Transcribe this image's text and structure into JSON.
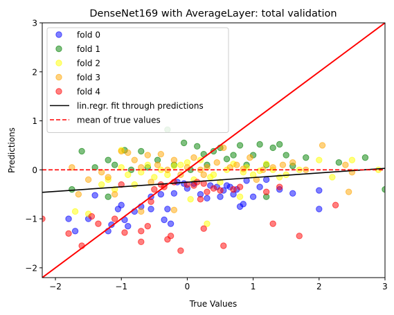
{
  "chart_data": {
    "type": "scatter",
    "title": "DenseNet169 with AverageLayer: total validation",
    "xlabel": "True Values",
    "ylabel": "Predictions",
    "xlim": [
      -2.2,
      3.0
    ],
    "ylim": [
      -2.2,
      3.0
    ],
    "xticks": [
      -2,
      -1,
      0,
      1,
      2,
      3
    ],
    "yticks": [
      -2,
      -1,
      0,
      1,
      2,
      3
    ],
    "grid": false,
    "legend_position": "top-left",
    "series": [
      {
        "name": "fold 0",
        "color": "#0000ff",
        "points": [
          [
            -1.8,
            -1.0
          ],
          [
            -1.7,
            -1.25
          ],
          [
            -1.5,
            -1.0
          ],
          [
            -1.2,
            -1.25
          ],
          [
            -1.15,
            -1.12
          ],
          [
            -1.05,
            -0.8
          ],
          [
            -1.0,
            -0.72
          ],
          [
            -0.95,
            -1.02
          ],
          [
            -0.9,
            -1.15
          ],
          [
            -0.8,
            -0.85
          ],
          [
            -0.7,
            -0.75
          ],
          [
            -0.55,
            -0.8
          ],
          [
            -0.4,
            -0.5
          ],
          [
            -0.35,
            -1.02
          ],
          [
            -0.3,
            -0.8
          ],
          [
            -0.25,
            -1.1
          ],
          [
            -0.2,
            -0.48
          ],
          [
            -0.15,
            -0.25
          ],
          [
            -0.05,
            -0.28
          ],
          [
            0.0,
            -0.38
          ],
          [
            0.1,
            -0.28
          ],
          [
            0.2,
            -0.5
          ],
          [
            0.35,
            -0.32
          ],
          [
            0.45,
            -0.35
          ],
          [
            0.5,
            -0.55
          ],
          [
            0.55,
            -0.42
          ],
          [
            0.6,
            -0.32
          ],
          [
            0.65,
            -0.35
          ],
          [
            0.7,
            -0.5
          ],
          [
            0.75,
            -0.4
          ],
          [
            0.8,
            -0.75
          ],
          [
            0.85,
            -0.7
          ],
          [
            0.9,
            -0.22
          ],
          [
            1.0,
            -0.55
          ],
          [
            1.1,
            -0.35
          ],
          [
            1.2,
            -0.2
          ],
          [
            1.4,
            -0.4
          ],
          [
            1.6,
            -0.48
          ],
          [
            2.0,
            -0.42
          ],
          [
            2.0,
            -0.8
          ],
          [
            -1.4,
            -0.52
          ],
          [
            -0.55,
            -0.55
          ],
          [
            0.3,
            -0.58
          ]
        ]
      },
      {
        "name": "fold 1",
        "color": "#008000",
        "points": [
          [
            -1.75,
            -0.4
          ],
          [
            -1.6,
            0.38
          ],
          [
            -1.4,
            0.05
          ],
          [
            -1.2,
            0.2
          ],
          [
            -1.1,
            0.1
          ],
          [
            -0.95,
            0.4
          ],
          [
            -0.85,
            0.0
          ],
          [
            -0.7,
            0.38
          ],
          [
            -0.6,
            0.05
          ],
          [
            -0.45,
            0.2
          ],
          [
            -0.3,
            0.82
          ],
          [
            -0.2,
            0.1
          ],
          [
            -0.05,
            0.55
          ],
          [
            0.05,
            0.0
          ],
          [
            0.15,
            0.48
          ],
          [
            0.25,
            0.32
          ],
          [
            0.3,
            0.1
          ],
          [
            0.4,
            0.38
          ],
          [
            0.5,
            0.45
          ],
          [
            0.6,
            0.22
          ],
          [
            0.7,
            0.3
          ],
          [
            0.8,
            0.5
          ],
          [
            0.9,
            0.1
          ],
          [
            1.0,
            0.3
          ],
          [
            1.1,
            0.52
          ],
          [
            1.2,
            0.1
          ],
          [
            1.3,
            0.45
          ],
          [
            1.4,
            0.52
          ],
          [
            1.5,
            0.3
          ],
          [
            1.6,
            0.08
          ],
          [
            1.8,
            0.25
          ],
          [
            2.3,
            0.15
          ],
          [
            2.7,
            0.25
          ],
          [
            3.0,
            -0.4
          ],
          [
            1.2,
            -0.55
          ],
          [
            -1.2,
            -0.55
          ]
        ]
      },
      {
        "name": "fold 2",
        "color": "#ffff00",
        "points": [
          [
            -1.7,
            -0.85
          ],
          [
            -1.5,
            -0.9
          ],
          [
            -1.3,
            -0.3
          ],
          [
            -1.2,
            -0.2
          ],
          [
            -1.1,
            -0.4
          ],
          [
            -1.0,
            0.05
          ],
          [
            -0.9,
            -0.1
          ],
          [
            -0.8,
            -0.3
          ],
          [
            -0.7,
            -0.05
          ],
          [
            -0.6,
            0.1
          ],
          [
            -0.5,
            -0.15
          ],
          [
            -0.4,
            0.0
          ],
          [
            -0.3,
            -0.1
          ],
          [
            -0.2,
            0.08
          ],
          [
            -0.1,
            0.1
          ],
          [
            0.0,
            0.15
          ],
          [
            0.05,
            -0.6
          ],
          [
            0.1,
            -0.2
          ],
          [
            0.2,
            0.2
          ],
          [
            0.3,
            -1.1
          ],
          [
            0.35,
            -0.15
          ],
          [
            0.4,
            -0.1
          ],
          [
            0.5,
            -0.25
          ],
          [
            0.6,
            0.0
          ],
          [
            0.7,
            0.12
          ],
          [
            0.8,
            -0.55
          ],
          [
            0.85,
            -0.05
          ],
          [
            0.9,
            0.05
          ],
          [
            1.0,
            -0.1
          ],
          [
            1.1,
            -0.02
          ],
          [
            1.2,
            0.12
          ],
          [
            1.3,
            0.0
          ],
          [
            1.4,
            -0.15
          ],
          [
            1.5,
            -0.1
          ],
          [
            1.7,
            0.0
          ],
          [
            2.0,
            0.2
          ],
          [
            2.2,
            -0.15
          ],
          [
            2.5,
            0.2
          ],
          [
            2.9,
            0.0
          ],
          [
            -1.0,
            0.4
          ]
        ]
      },
      {
        "name": "fold 3",
        "color": "#ffa500",
        "points": [
          [
            -1.75,
            0.05
          ],
          [
            -1.65,
            -0.5
          ],
          [
            -1.5,
            -0.2
          ],
          [
            -1.3,
            -0.05
          ],
          [
            -1.2,
            -0.15
          ],
          [
            -1.1,
            -0.5
          ],
          [
            -1.0,
            0.38
          ],
          [
            -0.9,
            0.35
          ],
          [
            -0.8,
            0.2
          ],
          [
            -0.7,
            0.05
          ],
          [
            -0.6,
            0.3
          ],
          [
            -0.55,
            -0.25
          ],
          [
            -0.45,
            0.1
          ],
          [
            -0.4,
            0.32
          ],
          [
            -0.3,
            0.0
          ],
          [
            -0.2,
            0.2
          ],
          [
            -0.1,
            -0.1
          ],
          [
            0.0,
            0.05
          ],
          [
            0.1,
            0.25
          ],
          [
            0.2,
            0.0
          ],
          [
            0.25,
            -0.1
          ],
          [
            0.3,
            0.05
          ],
          [
            0.45,
            0.15
          ],
          [
            0.55,
            0.45
          ],
          [
            0.65,
            0.05
          ],
          [
            0.75,
            0.1
          ],
          [
            0.85,
            0.02
          ],
          [
            0.95,
            0.25
          ],
          [
            1.05,
            -0.2
          ],
          [
            1.15,
            0.0
          ],
          [
            1.3,
            0.05
          ],
          [
            1.45,
            0.1
          ],
          [
            1.6,
            0.15
          ],
          [
            1.8,
            0.0
          ],
          [
            2.05,
            0.5
          ],
          [
            2.4,
            0.1
          ],
          [
            2.5,
            -0.05
          ],
          [
            2.45,
            -0.45
          ],
          [
            -0.7,
            -0.85
          ],
          [
            -0.2,
            -0.82
          ]
        ]
      },
      {
        "name": "fold 4",
        "color": "#ff0000",
        "points": [
          [
            -2.2,
            -1.0
          ],
          [
            -1.8,
            -1.3
          ],
          [
            -1.6,
            -1.55
          ],
          [
            -1.45,
            -0.95
          ],
          [
            -1.35,
            -1.1
          ],
          [
            -1.1,
            -1.0
          ],
          [
            -1.0,
            -0.3
          ],
          [
            -0.95,
            -1.28
          ],
          [
            -0.7,
            -1.25
          ],
          [
            -0.7,
            -1.47
          ],
          [
            -0.6,
            -1.15
          ],
          [
            -0.5,
            -0.4
          ],
          [
            -0.4,
            -0.3
          ],
          [
            -0.35,
            -0.35
          ],
          [
            -0.3,
            -1.42
          ],
          [
            -0.25,
            -1.35
          ],
          [
            -0.2,
            -0.25
          ],
          [
            -0.1,
            -1.65
          ],
          [
            0.0,
            -0.3
          ],
          [
            0.1,
            -0.32
          ],
          [
            0.15,
            -0.25
          ],
          [
            0.2,
            -0.6
          ],
          [
            0.25,
            -0.28
          ],
          [
            0.3,
            -0.45
          ],
          [
            0.4,
            -0.38
          ],
          [
            0.5,
            -0.42
          ],
          [
            0.55,
            -1.55
          ],
          [
            0.7,
            -0.4
          ],
          [
            0.8,
            -0.35
          ],
          [
            1.2,
            -0.45
          ],
          [
            1.3,
            -1.1
          ],
          [
            1.4,
            -0.35
          ],
          [
            1.7,
            -1.35
          ],
          [
            2.25,
            -0.72
          ],
          [
            0.25,
            -1.2
          ],
          [
            -0.55,
            -0.65
          ]
        ]
      }
    ],
    "reference_lines": [
      {
        "name": "lin.regr. fit through predictions",
        "color": "#000000",
        "style": "solid",
        "x": [
          -2.2,
          3.0
        ],
        "y": [
          -0.46,
          0.03
        ]
      },
      {
        "name": "mean of true values",
        "color": "#ff0000",
        "style": "dashed",
        "x": [
          -2.2,
          3.0
        ],
        "y": [
          0.0,
          0.0
        ]
      },
      {
        "name": "",
        "color": "#ff0000",
        "style": "solid",
        "x": [
          -2.2,
          3.0
        ],
        "y": [
          -2.2,
          3.0
        ]
      }
    ]
  }
}
